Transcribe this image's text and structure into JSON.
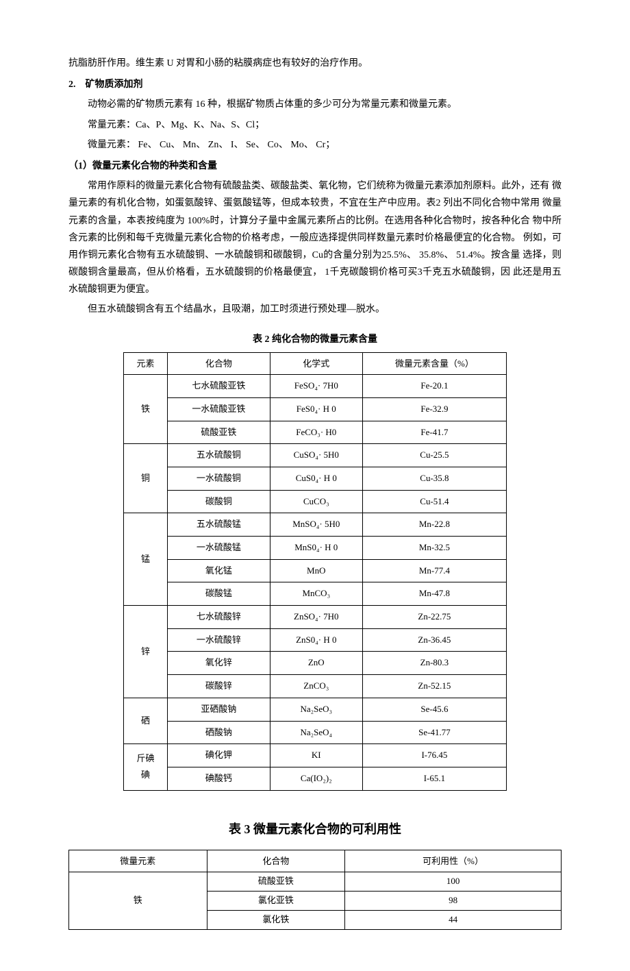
{
  "intro": "抗脂肪肝作用。维生素 U 对胃和小肠的粘膜病症也有较好的治疗作用。",
  "section2": {
    "title": "2.　矿物质添加剂",
    "p1": "动物必需的矿物质元素有 16 种，根据矿物质占体重的多少可分为常量元素和微量元素。",
    "p2": "常量元素：Ca、P、Mg、K、Na、S、Cl；",
    "p3": "微量元素：  Fe、 Cu、  Mn、 Zn、  I、 Se、 Co、 Mo、 Cr；",
    "sub1_title": "（1）微量元素化合物的种类和含量",
    "sub1_p1": "常用作原料的微量元素化合物有硫酸盐类、碳酸盐类、氧化物，它们统称为微量元素添加剂原料。此外，还有  微量元素的有机化合物，如蛋氨酸锌、蛋氨酸锰等，但成本较贵，不宜在生产中应用。表2  列出不同化合物中常用  微量元素的含量，本表按纯度为  100%时，计算分子量中金属元素所占的比例。在选用各种化合物时，按各种化合   物中所含元素的比例和每千克微量元素化合物的价格考虑，一般应选择提供同样数量元素时价格最便宜的化合物。  例如，可用作铜元素化合物有五水硫酸铜、一水硫酸铜和碳酸铜，Cu的含量分别为25.5%、  35.8%、  51.4%。按含量  选择，则碳酸铜含量最高，但从价格看，五水硫酸铜的价格最便宜，  1千克碳酸铜价格可买3千克五水硫酸铜，因  此还是用五水硫酸铜更为便宜。",
    "sub1_p2": "但五水硫酸铜含有五个结晶水，且吸潮，加工时须进行预处理—脱水。"
  },
  "table2": {
    "caption": "表  2 纯化合物的微量元素含量",
    "headers": [
      "元素",
      "化合物",
      "化学式",
      "微量元素含量（%）"
    ],
    "groups": [
      {
        "element": "铁",
        "rows": [
          {
            "compound": "七水硫酸亚铁",
            "formula": "FeSO₄· 7H0",
            "content": "Fe-20.1"
          },
          {
            "compound": "一水硫酸亚铁",
            "formula": "FeS0₄· H  0",
            "content": "Fe-32.9"
          },
          {
            "compound": "硫酸亚铁",
            "formula": "FeCO₃· H0",
            "content": "Fe-41.7"
          }
        ]
      },
      {
        "element": "铜",
        "rows": [
          {
            "compound": "五水硫酸铜",
            "formula": "CuSO₄· 5H0",
            "content": "Cu-25.5"
          },
          {
            "compound": "一水硫酸铜",
            "formula": "CuS0₄· H  0",
            "content": "Cu-35.8"
          },
          {
            "compound": "碳酸铜",
            "formula": "CuCO₃",
            "content": "Cu-51.4"
          }
        ]
      },
      {
        "element": "锰",
        "rows": [
          {
            "compound": "五水硫酸锰",
            "formula": "MnSO₄· 5H0",
            "content": "Mn-22.8"
          },
          {
            "compound": "一水硫酸锰",
            "formula": "MnS0₄· H  0",
            "content": "Mn-32.5"
          },
          {
            "compound": "氧化锰",
            "formula": "MnO",
            "content": "Mn-77.4"
          },
          {
            "compound": "碳酸锰",
            "formula": "MnCO₃",
            "content": "Mn-47.8"
          }
        ]
      },
      {
        "element": "锌",
        "rows": [
          {
            "compound": "七水硫酸锌",
            "formula": "ZnSO₄· 7H0",
            "content": "Zn-22.75"
          },
          {
            "compound": "一水硫酸锌",
            "formula": "ZnS0₄· H  0",
            "content": "Zn-36.45"
          },
          {
            "compound": "氧化锌",
            "formula": "ZnO",
            "content": "Zn-80.3"
          },
          {
            "compound": "碳酸锌",
            "formula": "ZnCO₃",
            "content": "Zn-52.15"
          }
        ]
      },
      {
        "element": "硒",
        "rows": [
          {
            "compound": "亚硒酸钠",
            "formula": "Na₂SeO₃",
            "content": "Se-45.6"
          },
          {
            "compound": "硒酸钠",
            "formula": "Na₂SeO₄",
            "content": "Se-41.77"
          }
        ]
      },
      {
        "element": "斤碘\n碘",
        "rows": [
          {
            "compound": "碘化钾",
            "formula": "KI",
            "content": "I-76.45"
          },
          {
            "compound": "碘酸钙",
            "formula": "Ca(IO₂)₂",
            "content": "I-65.1"
          }
        ]
      }
    ]
  },
  "table3": {
    "caption": "表  3 微量元素化合物的可利用性",
    "headers": [
      "微量元素",
      "化合物",
      "可利用性（%）"
    ],
    "groups": [
      {
        "element": "铁",
        "rows": [
          {
            "compound": "硫酸亚铁",
            "util": "100"
          },
          {
            "compound": "氯化亚铁",
            "util": "98"
          },
          {
            "compound": "氯化铁",
            "util": "44"
          }
        ]
      }
    ]
  }
}
